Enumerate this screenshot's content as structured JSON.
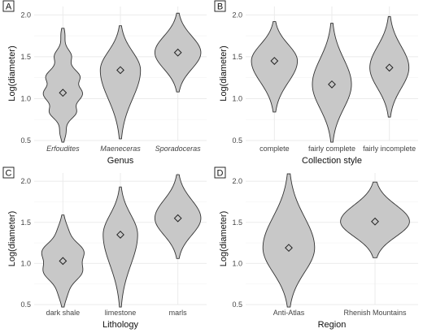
{
  "chart_data": [
    {
      "type": "violin",
      "panel_label": "A",
      "xlabel": "Genus",
      "ylabel": "Log(diameter)",
      "ylim": [
        0.5,
        2.1
      ],
      "yticks": [
        "0.5",
        "1.0",
        "1.5",
        "2.0"
      ],
      "categories": [
        "Erfoudites",
        "Maeneceras",
        "Sporadoceras"
      ],
      "italic_categories": true,
      "means": [
        1.07,
        1.34,
        1.55
      ],
      "ranges": [
        [
          0.48,
          1.84
        ],
        [
          0.52,
          1.87
        ],
        [
          1.08,
          2.02
        ]
      ],
      "max_half_widths": [
        0.32,
        0.35,
        0.4
      ]
    },
    {
      "type": "violin",
      "panel_label": "B",
      "xlabel": "Collection style",
      "ylabel": "Log(diameter)",
      "ylim": [
        0.5,
        2.1
      ],
      "yticks": [
        "0.5",
        "1.0",
        "1.5",
        "2.0"
      ],
      "categories": [
        "complete",
        "fairly complete",
        "fairly incomplete"
      ],
      "italic_categories": false,
      "means": [
        1.45,
        1.17,
        1.37
      ],
      "ranges": [
        [
          0.84,
          1.92
        ],
        [
          0.48,
          1.9
        ],
        [
          0.78,
          1.98
        ]
      ],
      "max_half_widths": [
        0.4,
        0.34,
        0.34
      ]
    },
    {
      "type": "violin",
      "panel_label": "C",
      "xlabel": "Lithology",
      "ylabel": "Log(diameter)",
      "ylim": [
        0.5,
        2.1
      ],
      "yticks": [
        "0.5",
        "1.0",
        "1.5",
        "2.0"
      ],
      "categories": [
        "dark shale",
        "limestone",
        "marls"
      ],
      "italic_categories": false,
      "means": [
        1.03,
        1.35,
        1.55
      ],
      "ranges": [
        [
          0.47,
          1.59
        ],
        [
          0.47,
          1.93
        ],
        [
          1.06,
          2.08
        ]
      ],
      "max_half_widths": [
        0.38,
        0.3,
        0.4
      ]
    },
    {
      "type": "violin",
      "panel_label": "D",
      "xlabel": "Region",
      "ylabel": "Log(diameter)",
      "ylim": [
        0.5,
        2.1
      ],
      "yticks": [
        "0.5",
        "1.0",
        "1.5",
        "2.0"
      ],
      "categories": [
        "Anti-Atlas",
        "Rhenish Mountains"
      ],
      "italic_categories": false,
      "means": [
        1.19,
        1.51
      ],
      "ranges": [
        [
          0.47,
          2.09
        ],
        [
          1.07,
          1.99
        ]
      ],
      "max_half_widths": [
        0.3,
        0.4
      ]
    }
  ]
}
